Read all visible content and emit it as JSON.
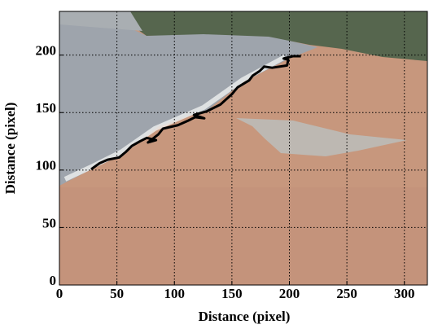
{
  "chart_data": {
    "type": "line",
    "x_label": "Distance (pixel)",
    "y_label": "Distance (pixel)",
    "x": [
      27.6,
      35,
      42,
      52,
      58,
      63,
      70,
      76,
      84,
      77,
      86,
      90,
      103,
      112,
      118,
      126,
      117,
      128,
      140,
      150,
      155,
      165,
      168,
      174,
      178,
      185,
      198,
      199,
      195,
      203,
      210
    ],
    "values": [
      100.7,
      106,
      109,
      111,
      116,
      121,
      125,
      128,
      126,
      124,
      131,
      136,
      139,
      143,
      146,
      145,
      148,
      151,
      157,
      166,
      172,
      178,
      182,
      186,
      190,
      189,
      191,
      196,
      197,
      199,
      199
    ],
    "color": "#000000",
    "xlim": [
      0,
      320
    ],
    "ylim": [
      0,
      238
    ],
    "xticks": [
      0,
      50,
      100,
      150,
      200,
      250,
      300
    ],
    "yticks": [
      0,
      50,
      100,
      150,
      200
    ],
    "grid": true
  }
}
